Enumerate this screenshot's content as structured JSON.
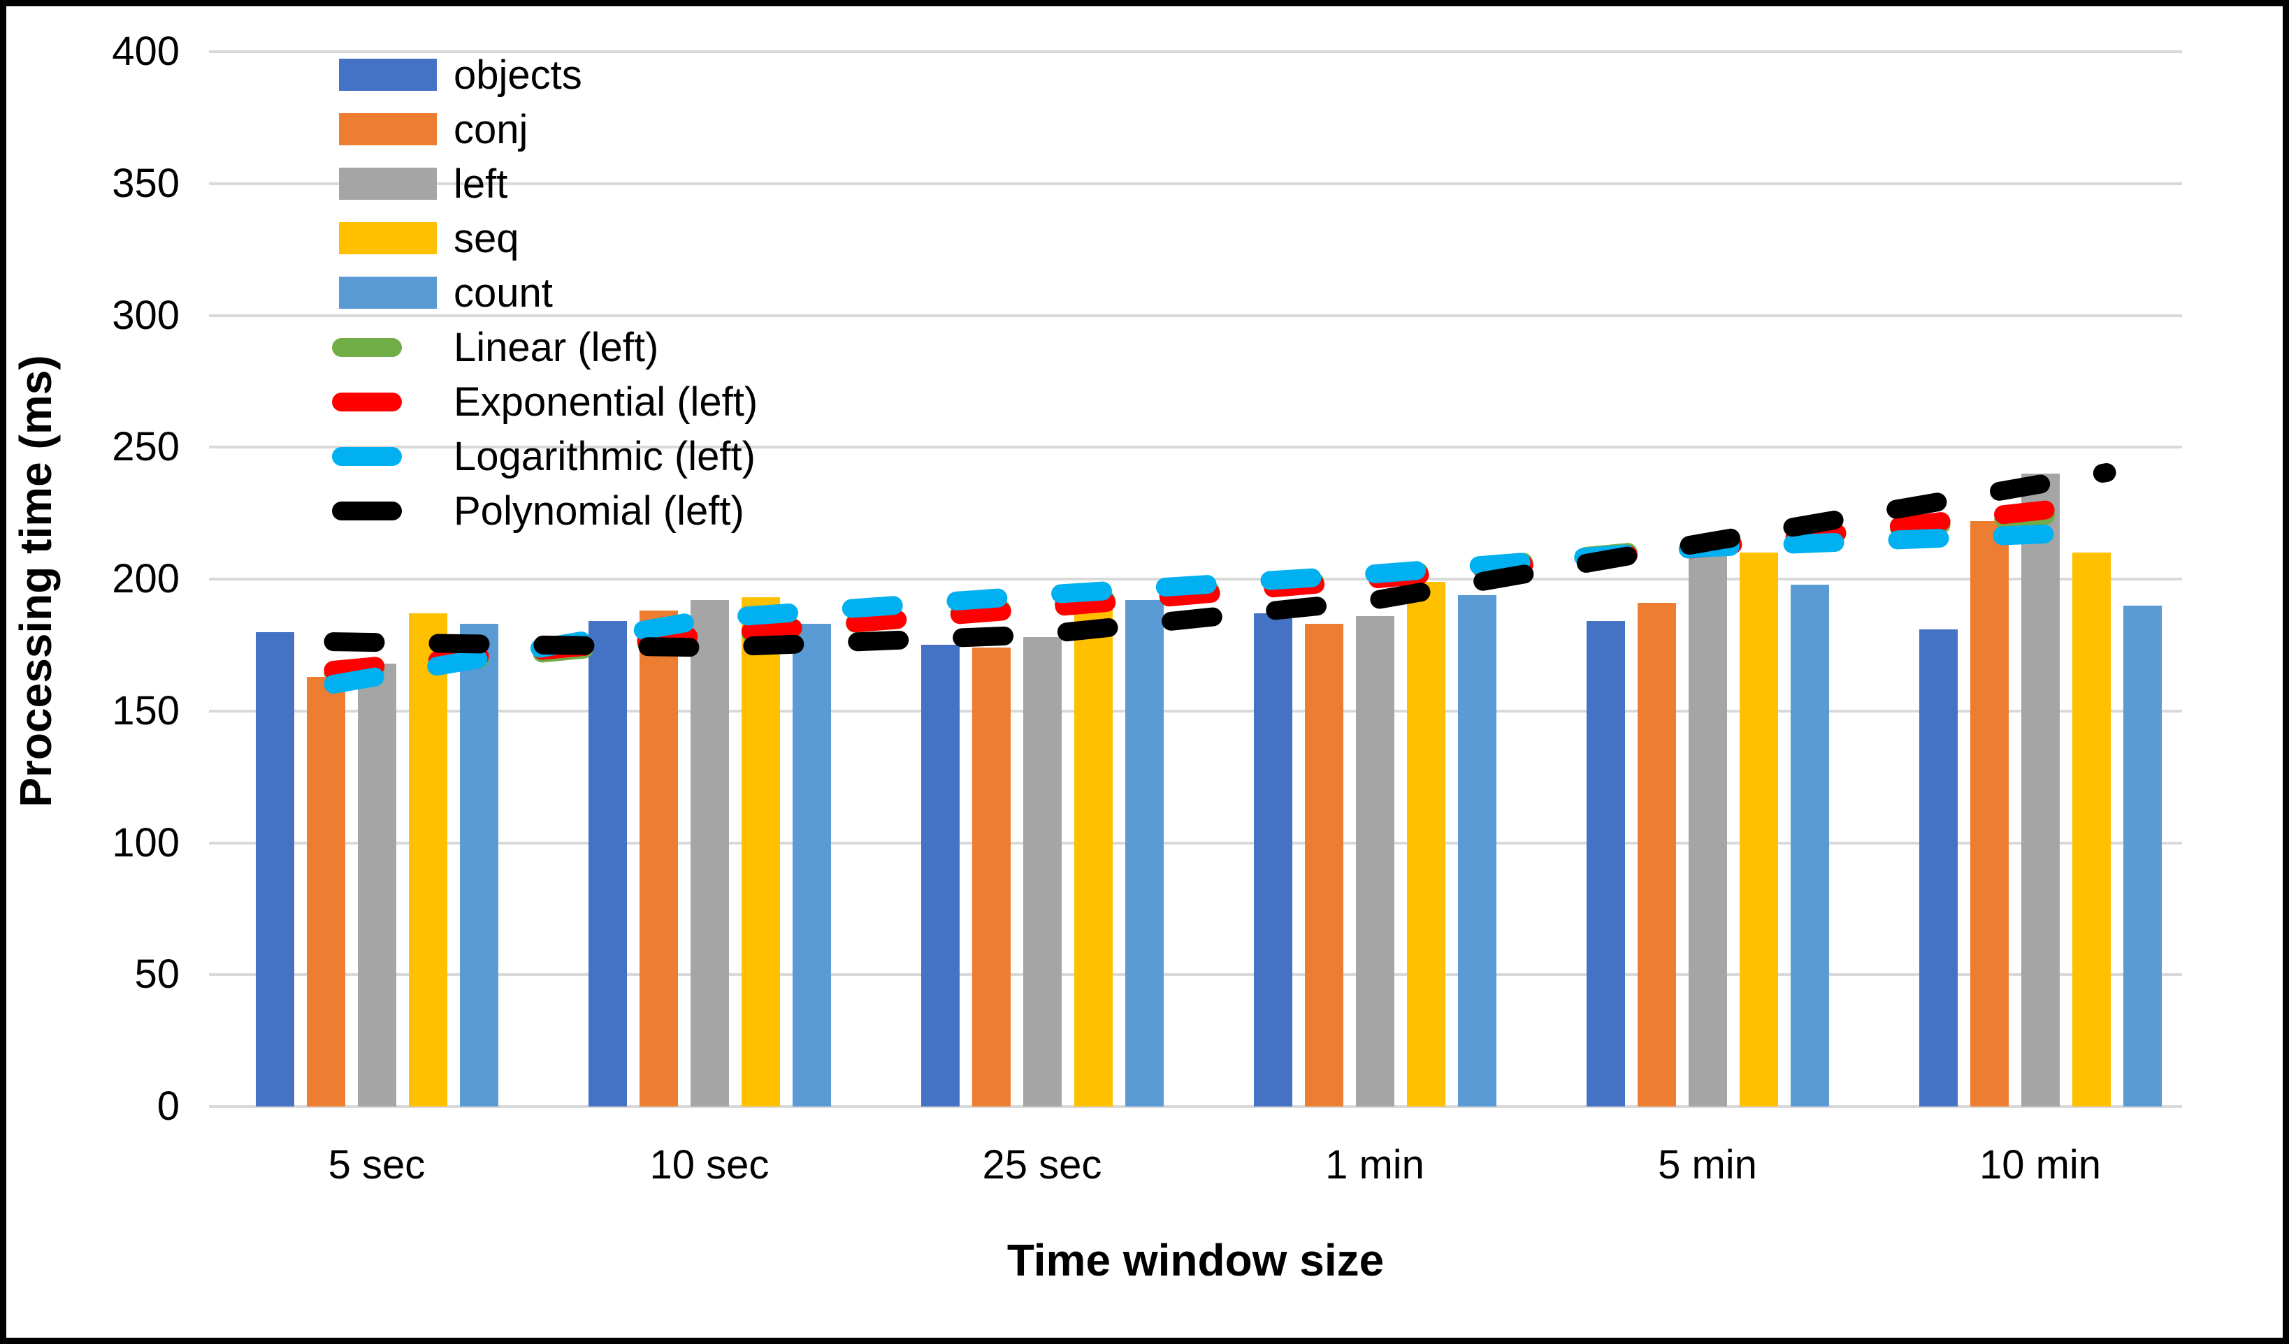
{
  "chart_data": {
    "type": "bar",
    "title": "",
    "xlabel": "Time window size",
    "ylabel": "Processing time (ms)",
    "categories": [
      "5 sec",
      "10 sec",
      "25 sec",
      "1 min",
      "5 min",
      "10 min"
    ],
    "y_axis": {
      "min": 0,
      "max": 400,
      "step": 50,
      "tick_labels": [
        "0",
        "50",
        "100",
        "150",
        "200",
        "250",
        "300",
        "350",
        "400"
      ]
    },
    "grid": "horizontal",
    "legend_position": "top-left-inside",
    "bar_series": [
      {
        "name": "objects",
        "color": "#4472C4",
        "values": [
          180,
          184,
          175,
          187,
          184,
          181
        ]
      },
      {
        "name": "conj",
        "color": "#ED7D31",
        "values": [
          163,
          188,
          174,
          183,
          191,
          222
        ]
      },
      {
        "name": "left",
        "color": "#A5A5A5",
        "values": [
          168,
          192,
          178,
          186,
          210,
          240
        ]
      },
      {
        "name": "seq",
        "color": "#FFC000",
        "values": [
          187,
          193,
          192,
          199,
          210,
          210
        ]
      },
      {
        "name": "count",
        "color": "#5B9BD5",
        "values": [
          183,
          183,
          192,
          194,
          198,
          190
        ]
      }
    ],
    "trend_series": [
      {
        "name": "Linear (left)",
        "color": "#70AD47",
        "values": [
          166,
          178,
          190,
          201,
          213,
          224
        ]
      },
      {
        "name": "Exponential (left)",
        "color": "#FF0000",
        "values": [
          167,
          179,
          189,
          200,
          212,
          226
        ]
      },
      {
        "name": "Logarithmic (left)",
        "color": "#00B0F0",
        "values": [
          163,
          185,
          194,
          202,
          212,
          217
        ]
      },
      {
        "name": "Polynomial (left)",
        "color": "#000000",
        "values": [
          176,
          174,
          179,
          192,
          214,
          236
        ]
      }
    ],
    "colors": {
      "background": "#FFFFFF",
      "frame_border": "#000000",
      "gridline": "#D9D9D9",
      "text": "#000000"
    }
  }
}
